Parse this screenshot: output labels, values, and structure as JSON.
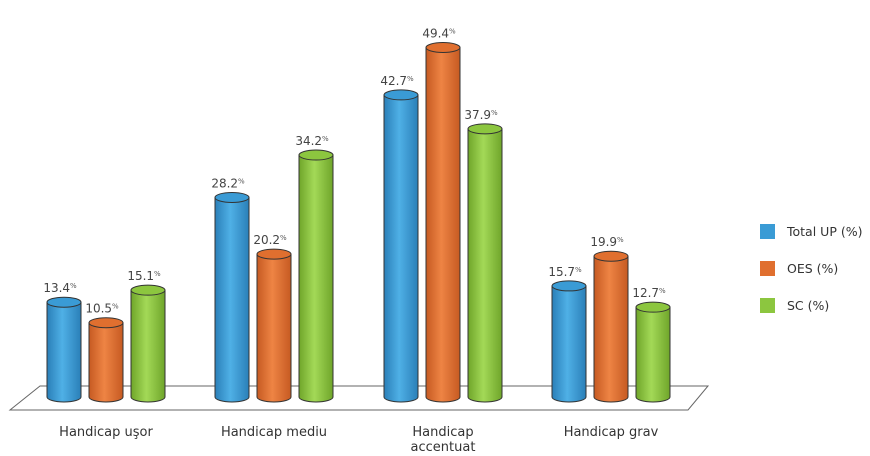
{
  "chart_data": {
    "type": "bar",
    "title": "",
    "xlabel": "",
    "ylabel": "",
    "ylim": [
      0,
      55
    ],
    "grid": false,
    "legend_position": "right",
    "categories": [
      [
        "Handicap uşor"
      ],
      [
        "Handicap mediu"
      ],
      [
        "Handicap",
        "accentuat"
      ],
      [
        "Handicap grav"
      ]
    ],
    "series": [
      {
        "name": "Total UP (%)",
        "color": "#3a9bd5",
        "values": [
          13.4,
          28.2,
          42.7,
          15.7
        ]
      },
      {
        "name": "OES (%)",
        "color": "#e06f2f",
        "values": [
          10.5,
          20.2,
          49.4,
          19.9
        ]
      },
      {
        "name": "SC (%)",
        "color": "#8cc63f",
        "values": [
          15.1,
          34.2,
          37.9,
          12.7
        ]
      }
    ],
    "value_suffix": "%"
  }
}
